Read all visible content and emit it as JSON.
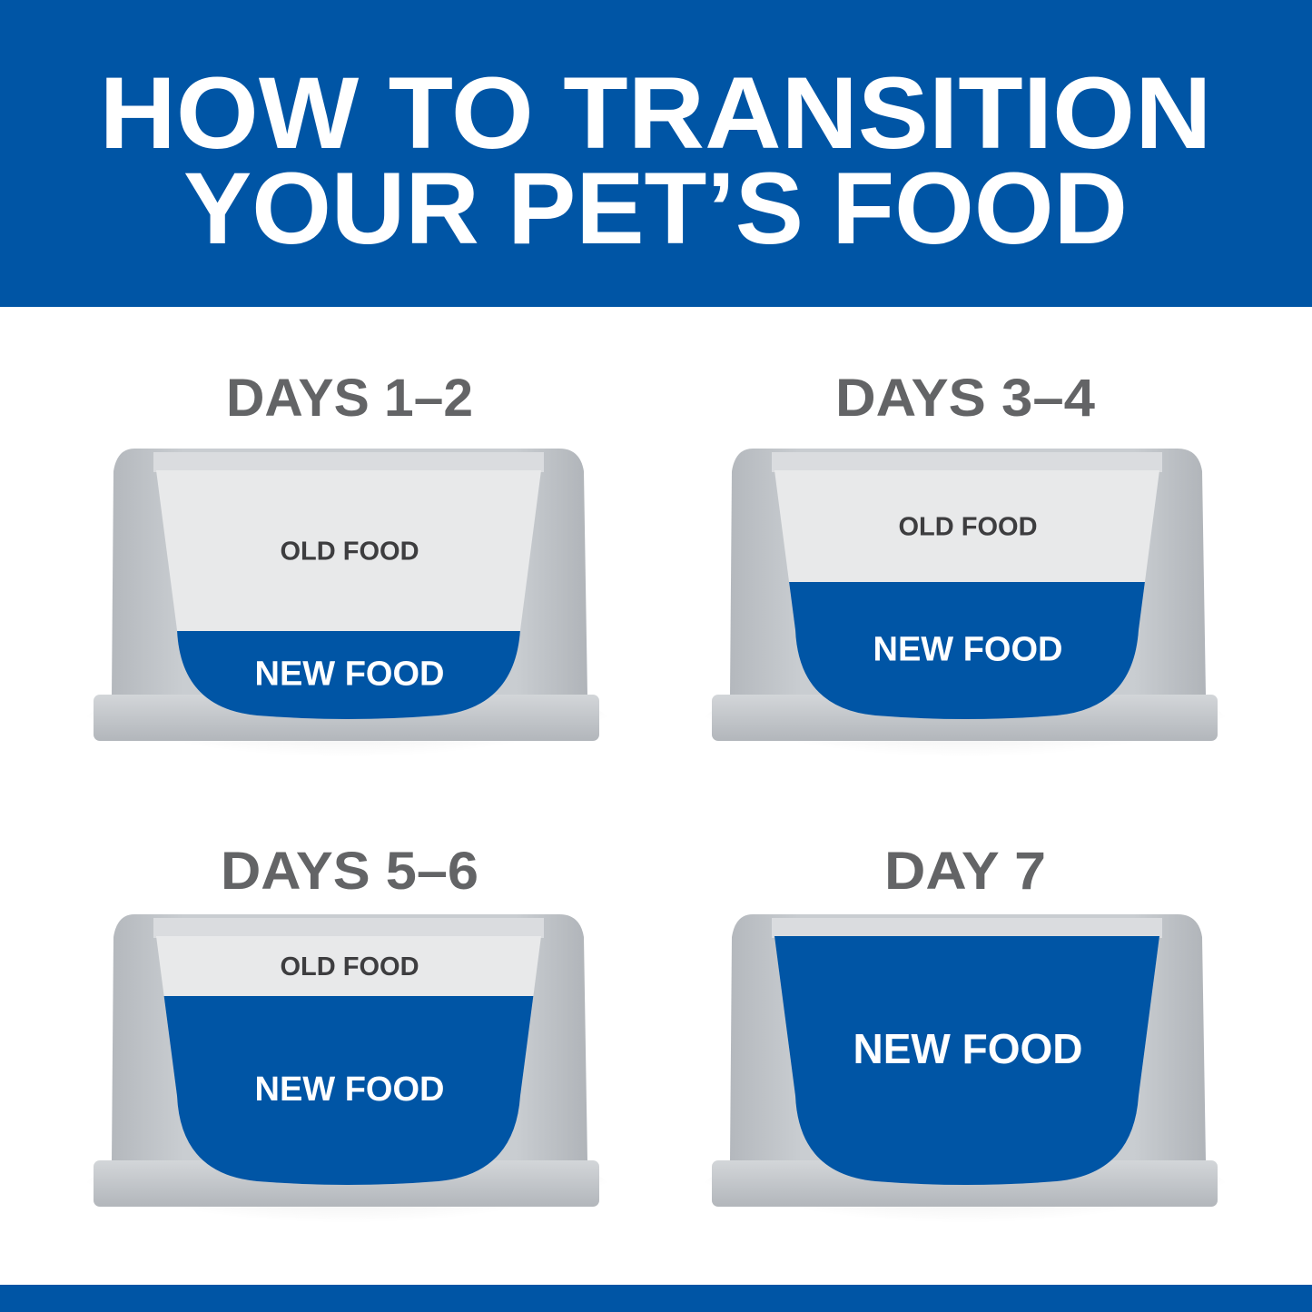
{
  "header": {
    "line1": "HOW TO TRANSITION",
    "line2": "YOUR PET’S FOOD"
  },
  "colors": {
    "brand_blue": "#0055a5",
    "old_food": "#e8e9ea",
    "bowl_gray": "#bfc3c7",
    "title_gray": "#636466"
  },
  "steps": [
    {
      "title": "DAYS 1–2",
      "old_label": "OLD FOOD",
      "new_label": "NEW FOOD",
      "new_food_fraction": 0.25
    },
    {
      "title": "DAYS 3–4",
      "old_label": "OLD FOOD",
      "new_label": "NEW FOOD",
      "new_food_fraction": 0.5
    },
    {
      "title": "DAYS 5–6",
      "old_label": "OLD FOOD",
      "new_label": "NEW FOOD",
      "new_food_fraction": 0.75
    },
    {
      "title": "DAY 7",
      "new_label": "NEW FOOD",
      "new_food_fraction": 1.0
    }
  ]
}
